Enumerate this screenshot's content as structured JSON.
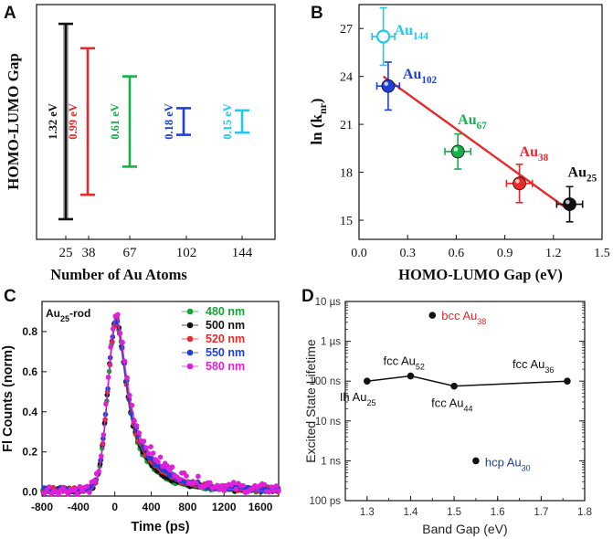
{
  "chart_data": [
    {
      "panel": "A",
      "type": "range",
      "ylabel": "HOMO-LUMO Gap",
      "xlabel": "Number of Au Atoms",
      "categories": [
        "25",
        "38",
        "67",
        "102",
        "144"
      ],
      "gaps_ev": [
        1.32,
        0.99,
        0.61,
        0.18,
        0.15
      ],
      "gap_labels": [
        "1.32 eV",
        "0.99 eV",
        "0.61 eV",
        "0.18 eV",
        "0.15 eV"
      ],
      "colors": [
        "#111111",
        "#e8292b",
        "#16b04a",
        "#1f3fd6",
        "#1ec8ee"
      ]
    },
    {
      "panel": "B",
      "type": "scatter",
      "xlabel": "HOMO-LUMO Gap (eV)",
      "ylabel_base": "ln (k",
      "ylabel_sub": "nr",
      "ylabel_end": ")",
      "xlim": [
        0.0,
        1.5
      ],
      "ylim": [
        13.8,
        28.5
      ],
      "xticks": [
        0.0,
        0.3,
        0.6,
        0.9,
        1.2,
        1.5
      ],
      "xtick_labels": [
        "0.0",
        "0.3",
        "0.6",
        "0.9",
        "1.2",
        "1.5"
      ],
      "yticks": [
        15,
        18,
        21,
        24,
        27
      ],
      "ytick_labels": [
        "15",
        "18",
        "21",
        "24",
        "27"
      ],
      "points": [
        {
          "base": "Au",
          "sub": "144",
          "x": 0.15,
          "y": 26.5,
          "xerr": 0.07,
          "yerr": 1.8,
          "color": "#1ec8ee",
          "hollow": true
        },
        {
          "base": "Au",
          "sub": "102",
          "x": 0.18,
          "y": 23.4,
          "xerr": 0.07,
          "yerr": 1.5,
          "color": "#1f3fd6",
          "hollow": false
        },
        {
          "base": "Au",
          "sub": "67",
          "x": 0.61,
          "y": 19.3,
          "xerr": 0.08,
          "yerr": 1.1,
          "color": "#16b04a",
          "hollow": false
        },
        {
          "base": "Au",
          "sub": "38",
          "x": 0.99,
          "y": 17.3,
          "xerr": 0.08,
          "yerr": 1.2,
          "color": "#e8292b",
          "hollow": false
        },
        {
          "base": "Au",
          "sub": "25",
          "x": 1.3,
          "y": 16.0,
          "xerr": 0.08,
          "yerr": 1.1,
          "color": "#111111",
          "hollow": false
        }
      ],
      "fit_line": {
        "x": [
          0.15,
          1.3
        ],
        "y": [
          24.0,
          15.6
        ],
        "color": "#e8292b"
      }
    },
    {
      "panel": "C",
      "type": "scatter+line",
      "title_base": "Au",
      "title_sub": "25",
      "title_end": "-rod",
      "xlabel": "Time (ps)",
      "ylabel": "Fl Counts (norm)",
      "xlim": [
        -800,
        1800
      ],
      "ylim": [
        -0.02,
        0.95
      ],
      "xticks": [
        -800,
        -400,
        0,
        400,
        800,
        1200,
        1600
      ],
      "xtick_labels": [
        "-800",
        "-400",
        "0",
        "400",
        "800",
        "1200",
        "1600"
      ],
      "yticks": [
        0.0,
        0.2,
        0.4,
        0.6,
        0.8
      ],
      "ytick_labels": [
        "0.0",
        "0.2",
        "0.4",
        "0.6",
        "0.8"
      ],
      "series": [
        {
          "name": "480 nm",
          "color": "#16a535",
          "peak": 0.86,
          "decay": 250
        },
        {
          "name": "500 nm",
          "color": "#111111",
          "peak": 0.87,
          "decay": 260
        },
        {
          "name": "520 nm",
          "color": "#e8292b",
          "peak": 0.85,
          "decay": 285
        },
        {
          "name": "550 nm",
          "color": "#1f3fd6",
          "peak": 0.86,
          "decay": 300
        },
        {
          "name": "580 nm",
          "color": "#e020d8",
          "peak": 0.88,
          "decay": 340
        }
      ]
    },
    {
      "panel": "D",
      "type": "scatter+line",
      "xlabel": "Band Gap (eV)",
      "ylabel": "Excited State Lifetime",
      "xlim": [
        1.25,
        1.8
      ],
      "xticks": [
        1.3,
        1.4,
        1.5,
        1.6,
        1.7,
        1.8
      ],
      "xtick_labels": [
        "1.3",
        "1.4",
        "1.5",
        "1.6",
        "1.7",
        "1.8"
      ],
      "ylim_log_ps": [
        100,
        10000000
      ],
      "ytick_labels": [
        "100 ps",
        "1 ns",
        "10 ns",
        "100 ns",
        "1 µs",
        "10 µs"
      ],
      "yticks_log10_ps": [
        2,
        3,
        4,
        5,
        6,
        7
      ],
      "points": [
        {
          "pre": "Ih Au",
          "sub": "25",
          "x": 1.3,
          "lifetime_ns": 100,
          "color": "#111111",
          "connected": true
        },
        {
          "pre": "fcc Au",
          "sub": "52",
          "x": 1.4,
          "lifetime_ns": 135,
          "color": "#111111",
          "connected": true
        },
        {
          "pre": "fcc Au",
          "sub": "44",
          "x": 1.5,
          "lifetime_ns": 75,
          "color": "#111111",
          "connected": true
        },
        {
          "pre": "fcc Au",
          "sub": "36",
          "x": 1.76,
          "lifetime_ns": 100,
          "color": "#111111",
          "connected": true
        },
        {
          "pre": "bcc Au",
          "sub": "38",
          "x": 1.45,
          "lifetime_ns": 4500,
          "color": "#e8292b",
          "connected": false
        },
        {
          "pre": "hcp Au",
          "sub": "30",
          "x": 1.55,
          "lifetime_ns": 1,
          "color": "#1f3f9a",
          "connected": false
        }
      ]
    }
  ]
}
